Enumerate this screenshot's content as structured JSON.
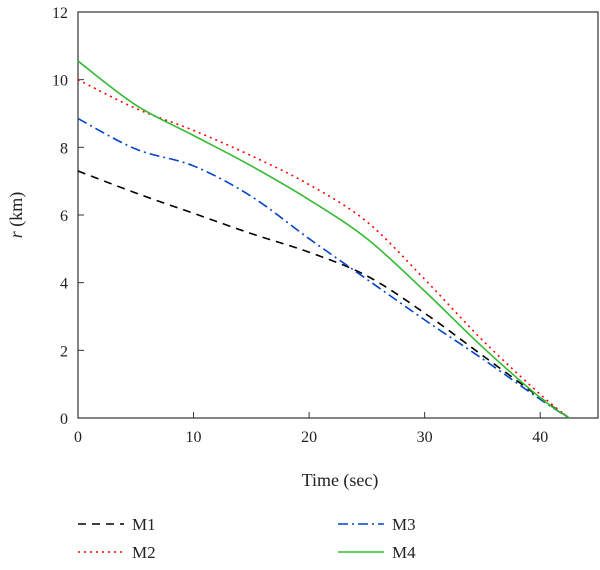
{
  "chart_data": {
    "type": "line",
    "title": "",
    "xlabel": "Time (sec)",
    "ylabel_italic": "r",
    "ylabel_unit": " (km)",
    "xlim": [
      0,
      45
    ],
    "ylim": [
      0,
      12
    ],
    "xticks": [
      0,
      10,
      20,
      30,
      40
    ],
    "yticks": [
      0,
      2,
      4,
      6,
      8,
      10,
      12
    ],
    "grid": false,
    "legend_position": "bottom",
    "series": [
      {
        "name": "M1",
        "color": "#000000",
        "dash": "8,6",
        "x": [
          0,
          5,
          10,
          15,
          20,
          25,
          30,
          35,
          40,
          42.5
        ],
        "y": [
          7.3,
          6.65,
          6.05,
          5.45,
          4.9,
          4.2,
          3.1,
          1.85,
          0.6,
          0.0
        ]
      },
      {
        "name": "M2",
        "color": "#ff0000",
        "dash": "2,4",
        "x": [
          0,
          5,
          10,
          15,
          20,
          25,
          30,
          35,
          40,
          42.5
        ],
        "y": [
          10.0,
          9.15,
          8.5,
          7.75,
          6.9,
          5.8,
          4.1,
          2.3,
          0.7,
          0.0
        ]
      },
      {
        "name": "M3",
        "color": "#0044cc",
        "dash": "10,4,2,4",
        "x": [
          0,
          5,
          10,
          15,
          20,
          25,
          30,
          35,
          40,
          42.5
        ],
        "y": [
          8.85,
          7.95,
          7.45,
          6.55,
          5.3,
          4.1,
          2.9,
          1.75,
          0.55,
          0.0
        ]
      },
      {
        "name": "M4",
        "color": "#33bb33",
        "dash": "",
        "x": [
          0,
          5,
          10,
          15,
          20,
          25,
          30,
          35,
          40,
          42.5
        ],
        "y": [
          10.55,
          9.25,
          8.35,
          7.45,
          6.45,
          5.3,
          3.75,
          2.1,
          0.6,
          0.0
        ]
      }
    ]
  }
}
